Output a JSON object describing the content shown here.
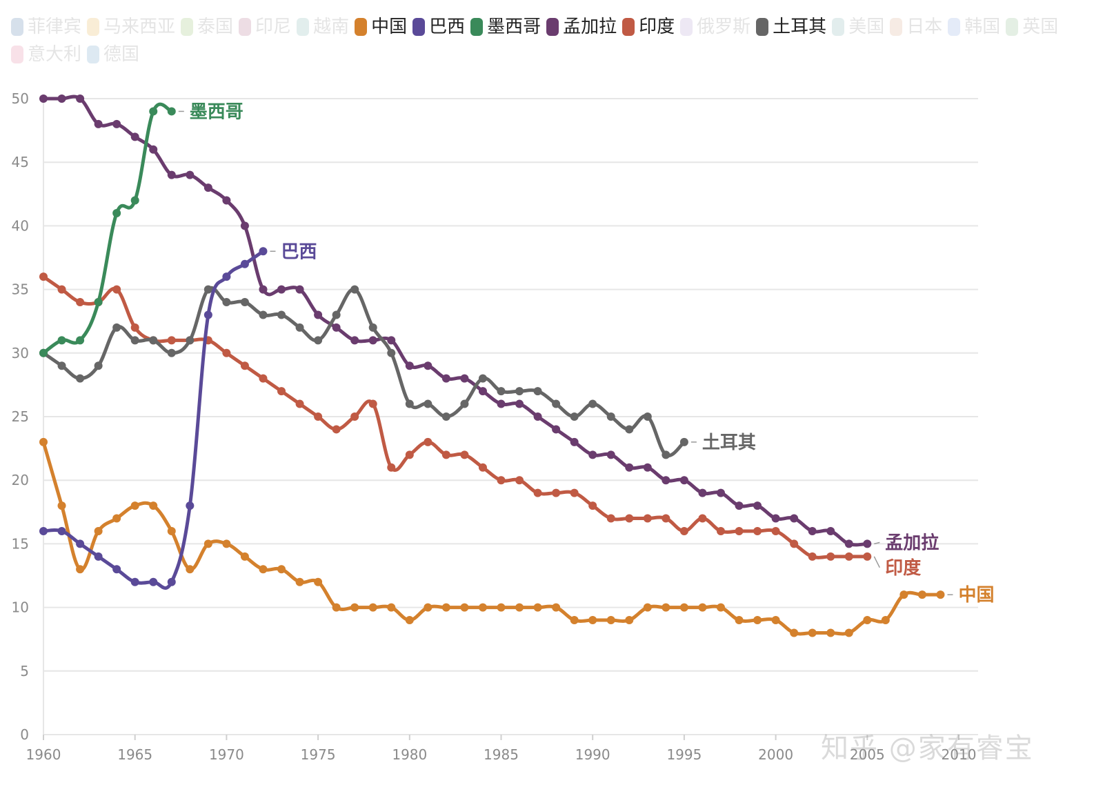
{
  "legend": [
    {
      "name": "菲律宾",
      "color": "#4a78a8",
      "active": false
    },
    {
      "name": "马来西亚",
      "color": "#e8b24a",
      "active": false
    },
    {
      "name": "泰国",
      "color": "#8fbf6a",
      "active": false
    },
    {
      "name": "印尼",
      "color": "#b06a8a",
      "active": false
    },
    {
      "name": "越南",
      "color": "#7fb4b0",
      "active": false
    },
    {
      "name": "中国",
      "color": "#d4812d",
      "active": true
    },
    {
      "name": "巴西",
      "color": "#5a4a98",
      "active": true
    },
    {
      "name": "墨西哥",
      "color": "#3a8a5a",
      "active": true
    },
    {
      "name": "孟加拉",
      "color": "#6a3c6e",
      "active": true
    },
    {
      "name": "印度",
      "color": "#c05a44",
      "active": true
    },
    {
      "name": "俄罗斯",
      "color": "#b09ad0",
      "active": false
    },
    {
      "name": "土耳其",
      "color": "#666666",
      "active": true
    },
    {
      "name": "美国",
      "color": "#7fb0b0",
      "active": false
    },
    {
      "name": "日本",
      "color": "#d8a888",
      "active": false
    },
    {
      "name": "韩国",
      "color": "#8aa8e0",
      "active": false
    },
    {
      "name": "英国",
      "color": "#8aba8a",
      "active": false
    },
    {
      "name": "意大利",
      "color": "#e07a9a",
      "active": false
    },
    {
      "name": "德国",
      "color": "#6aa0c8",
      "active": false
    }
  ],
  "chart_data": {
    "type": "line",
    "title": "",
    "xlabel": "",
    "ylabel": "",
    "xlim": [
      1960,
      2010
    ],
    "ylim": [
      0,
      50
    ],
    "x_ticks": [
      1960,
      1965,
      1970,
      1975,
      1980,
      1985,
      1990,
      1995,
      2000,
      2005,
      2010
    ],
    "y_ticks": [
      0,
      5,
      10,
      15,
      20,
      25,
      30,
      35,
      40,
      45,
      50
    ],
    "grid": true,
    "series": [
      {
        "name": "孟加拉",
        "color": "#6a3c6e",
        "start": 1960,
        "values": [
          50,
          50,
          50,
          48,
          48,
          47,
          46,
          44,
          44,
          43,
          42,
          40,
          35,
          35,
          35,
          33,
          32,
          31,
          31,
          31,
          29,
          29,
          28,
          28,
          27,
          26,
          26,
          25,
          24,
          23,
          22,
          22,
          21,
          21,
          20,
          20,
          19,
          19,
          18,
          18,
          17,
          17,
          16,
          16,
          15,
          15
        ]
      },
      {
        "name": "印度",
        "color": "#c05a44",
        "start": 1960,
        "values": [
          36,
          35,
          34,
          34,
          35,
          32,
          31,
          31,
          31,
          31,
          30,
          29,
          28,
          27,
          26,
          25,
          24,
          25,
          26,
          21,
          22,
          23,
          22,
          22,
          21,
          20,
          20,
          19,
          19,
          19,
          18,
          17,
          17,
          17,
          17,
          16,
          17,
          16,
          16,
          16,
          16,
          15,
          14,
          14,
          14,
          14
        ]
      },
      {
        "name": "土耳其",
        "color": "#666666",
        "start": 1960,
        "values": [
          30,
          29,
          28,
          29,
          32,
          31,
          31,
          30,
          31,
          35,
          34,
          34,
          33,
          33,
          32,
          31,
          33,
          35,
          32,
          30,
          26,
          26,
          25,
          26,
          28,
          27,
          27,
          27,
          26,
          25,
          26,
          25,
          24,
          25,
          22,
          23
        ]
      },
      {
        "name": "中国",
        "color": "#d4812d",
        "start": 1960,
        "values": [
          23,
          18,
          13,
          16,
          17,
          18,
          18,
          16,
          13,
          15,
          15,
          14,
          13,
          13,
          12,
          12,
          10,
          10,
          10,
          10,
          9,
          10,
          10,
          10,
          10,
          10,
          10,
          10,
          10,
          9,
          9,
          9,
          9,
          10,
          10,
          10,
          10,
          10,
          9,
          9,
          9,
          8,
          8,
          8,
          8,
          9,
          9,
          11,
          11,
          11
        ]
      },
      {
        "name": "巴西",
        "color": "#5a4a98",
        "start": 1960,
        "values": [
          16,
          16,
          15,
          14,
          13,
          12,
          12,
          12,
          18,
          33,
          36,
          37,
          38
        ]
      },
      {
        "name": "墨西哥",
        "color": "#3a8a5a",
        "start": 1960,
        "values": [
          30,
          31,
          31,
          34,
          41,
          42,
          49,
          49
        ]
      }
    ]
  },
  "watermark": "知乎 @家有睿宝"
}
